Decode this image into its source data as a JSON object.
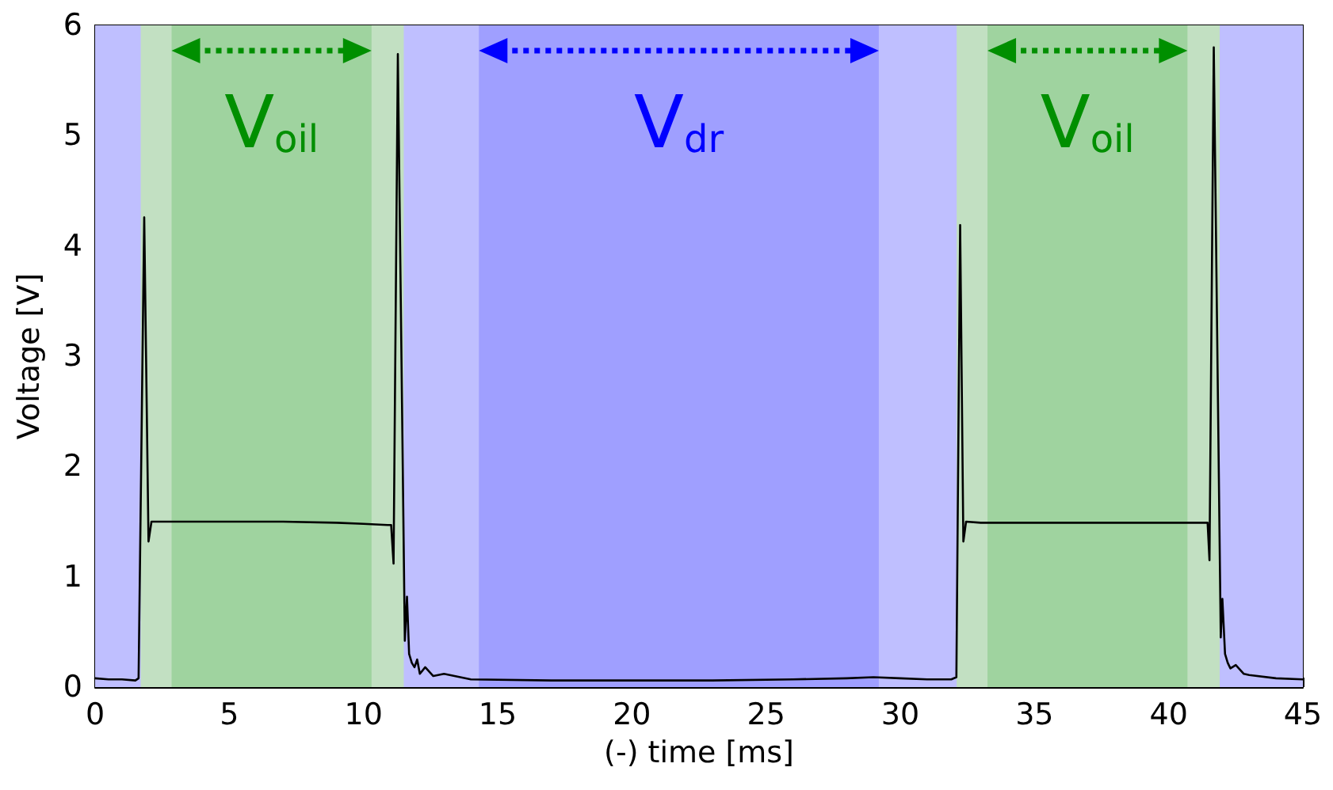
{
  "chart_data": {
    "type": "line",
    "xlabel": "(-) time [ms]",
    "ylabel": "Voltage [V]",
    "xlim": [
      0,
      45
    ],
    "xticks": [
      0,
      5,
      10,
      15,
      20,
      25,
      30,
      35,
      40,
      45
    ],
    "ylim": [
      0,
      6
    ],
    "yticks": [
      0,
      1,
      2,
      3,
      4,
      5,
      6
    ],
    "grid": false,
    "marker": "none",
    "line_style": "solid",
    "bands": [
      {
        "axis": "x",
        "from": 0,
        "to": 45,
        "color": "#bfbfff"
      },
      {
        "axis": "x",
        "from": 1.7,
        "to": 11.5,
        "color": "#c2e0c2"
      },
      {
        "axis": "x",
        "from": 32.1,
        "to": 41.9,
        "color": "#c2e0c2"
      },
      {
        "axis": "x",
        "from": 2.85,
        "to": 10.3,
        "color": "#9fd39f",
        "label": "V$_{oil}$"
      },
      {
        "axis": "x",
        "from": 33.25,
        "to": 40.7,
        "color": "#9fd39f",
        "label": "V$_{oil}$"
      },
      {
        "axis": "x",
        "from": 14.3,
        "to": 29.2,
        "color": "#9f9fff",
        "label": "V$_{dr}$"
      }
    ],
    "series": [
      {
        "color": "#000000",
        "x": [
          0,
          0.5,
          1,
          1.5,
          1.62,
          1.83,
          1.99,
          2.1,
          3,
          5,
          7,
          9,
          10,
          10.9,
          11.03,
          11.12,
          11.28,
          11.54,
          11.62,
          11.7,
          11.8,
          11.9,
          12.0,
          12.1,
          12.3,
          12.6,
          13,
          14,
          17,
          20,
          23,
          26,
          28,
          29,
          30,
          31,
          31.9,
          32.09,
          32.23,
          32.35,
          32.45,
          33,
          35,
          37,
          39,
          41,
          41.45,
          41.52,
          41.68,
          41.94,
          42.0,
          42.1,
          42.2,
          42.3,
          42.5,
          42.8,
          43,
          44,
          45
        ],
        "values": [
          0.08,
          0.07,
          0.07,
          0.06,
          0.08,
          4.26,
          1.32,
          1.5,
          1.5,
          1.5,
          1.5,
          1.49,
          1.48,
          1.47,
          1.47,
          1.12,
          5.74,
          0.42,
          0.82,
          0.3,
          0.22,
          0.18,
          0.25,
          0.12,
          0.18,
          0.1,
          0.12,
          0.07,
          0.06,
          0.06,
          0.06,
          0.07,
          0.08,
          0.09,
          0.08,
          0.07,
          0.07,
          0.09,
          4.19,
          1.32,
          1.5,
          1.49,
          1.49,
          1.49,
          1.49,
          1.49,
          1.49,
          1.15,
          5.8,
          0.45,
          0.8,
          0.3,
          0.22,
          0.17,
          0.2,
          0.12,
          0.11,
          0.08,
          0.07
        ]
      }
    ]
  }
}
